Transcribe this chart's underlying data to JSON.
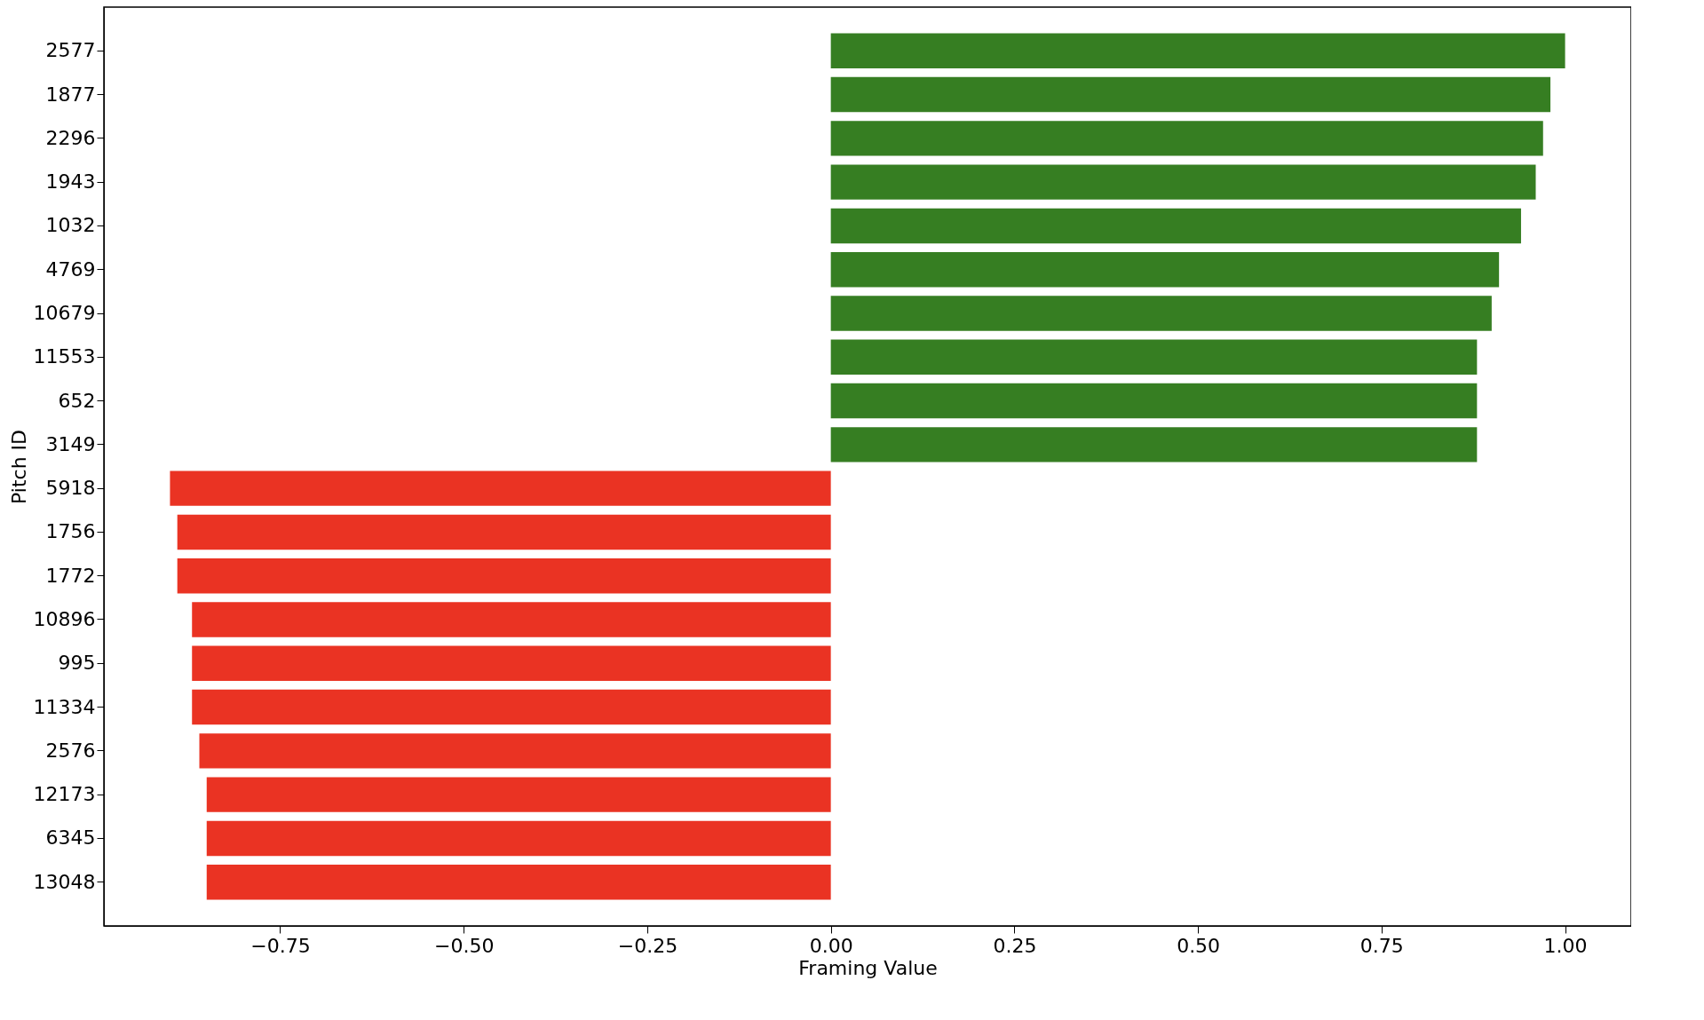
{
  "chart_data": {
    "type": "bar",
    "orientation": "horizontal",
    "xlabel": "Framing Value",
    "ylabel": "Pitch ID",
    "categories": [
      "2577",
      "1877",
      "2296",
      "1943",
      "1032",
      "4769",
      "10679",
      "11553",
      "652",
      "3149",
      "5918",
      "1756",
      "1772",
      "10896",
      "995",
      "11334",
      "2576",
      "12173",
      "6345",
      "13048"
    ],
    "values": [
      1.0,
      0.98,
      0.97,
      0.96,
      0.94,
      0.91,
      0.9,
      0.88,
      0.88,
      0.88,
      -0.9,
      -0.89,
      -0.89,
      -0.87,
      -0.87,
      -0.87,
      -0.86,
      -0.85,
      -0.85,
      -0.85
    ],
    "colors": [
      "#367e22",
      "#367e22",
      "#367e22",
      "#367e22",
      "#367e22",
      "#367e22",
      "#367e22",
      "#367e22",
      "#367e22",
      "#367e22",
      "#ea3323",
      "#ea3323",
      "#ea3323",
      "#ea3323",
      "#ea3323",
      "#ea3323",
      "#ea3323",
      "#ea3323",
      "#ea3323",
      "#ea3323"
    ],
    "xlim": [
      -0.99,
      1.09
    ],
    "xticks": [
      {
        "value": -0.75,
        "label": "−0.75"
      },
      {
        "value": -0.5,
        "label": "−0.50"
      },
      {
        "value": -0.25,
        "label": "−0.25"
      },
      {
        "value": 0,
        "label": "0.00"
      },
      {
        "value": 0.25,
        "label": "0.25"
      },
      {
        "value": 0.5,
        "label": "0.50"
      },
      {
        "value": 0.75,
        "label": "0.75"
      },
      {
        "value": 1,
        "label": "1.00"
      }
    ],
    "grid": false
  }
}
